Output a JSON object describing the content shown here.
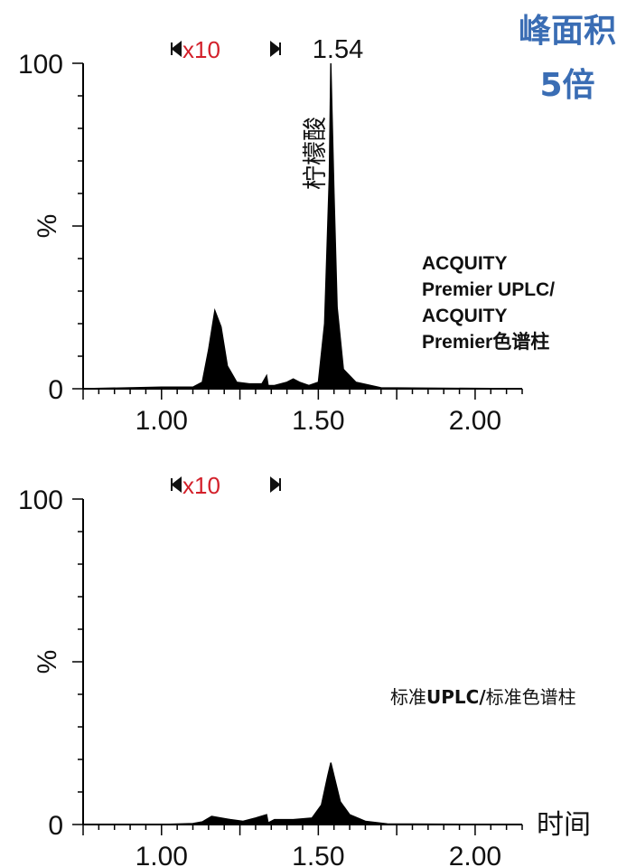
{
  "headline": {
    "line1": "峰面积",
    "line2": "5倍"
  },
  "x_axis_title": "时间",
  "chart_data": [
    {
      "type": "line",
      "panel": "top",
      "column_label": [
        "ACQUITY",
        "Premier UPLC/",
        "ACQUITY",
        "Premier色谱柱"
      ],
      "zoom_label": "x10",
      "peak_label": "1.54",
      "compound_label": "柠檬酸",
      "xlim": [
        0.75,
        2.15
      ],
      "ylim": [
        0,
        100
      ],
      "xticks": [
        "1.00",
        "1.50",
        "2.00"
      ],
      "xtick_values": [
        1.0,
        1.5,
        2.0
      ],
      "yticks": [
        "0",
        "%",
        "100"
      ],
      "ytick_values": [
        0,
        50,
        100
      ],
      "x": [
        0.75,
        1.0,
        1.05,
        1.1,
        1.13,
        1.15,
        1.17,
        1.19,
        1.21,
        1.24,
        1.28,
        1.32,
        1.335,
        1.34,
        1.36,
        1.4,
        1.42,
        1.44,
        1.47,
        1.5,
        1.52,
        1.535,
        1.54,
        1.55,
        1.56,
        1.58,
        1.62,
        1.7,
        2.15
      ],
      "y": [
        0,
        0.5,
        0.5,
        0.5,
        2,
        12,
        24,
        19,
        7,
        2,
        1.5,
        1.5,
        4,
        1,
        1,
        2,
        3,
        2,
        1,
        2,
        20,
        65,
        100,
        60,
        25,
        6,
        2,
        0.3,
        0
      ]
    },
    {
      "type": "line",
      "panel": "bottom",
      "column_label": [
        "标准",
        "UPLC/",
        "标准色谱柱"
      ],
      "zoom_label": "x10",
      "peak_label": "",
      "compound_label": "",
      "xlim": [
        0.75,
        2.15
      ],
      "ylim": [
        0,
        100
      ],
      "xticks": [
        "1.00",
        "1.50",
        "2.00"
      ],
      "xtick_values": [
        1.0,
        1.5,
        2.0
      ],
      "yticks": [
        "0",
        "%",
        "100"
      ],
      "ytick_values": [
        0,
        50,
        100
      ],
      "x": [
        0.75,
        1.0,
        1.1,
        1.13,
        1.16,
        1.19,
        1.22,
        1.26,
        1.3,
        1.335,
        1.34,
        1.36,
        1.42,
        1.48,
        1.51,
        1.53,
        1.54,
        1.55,
        1.57,
        1.6,
        1.65,
        1.72,
        2.15
      ],
      "y": [
        0,
        0,
        0.3,
        0.8,
        2.5,
        2.0,
        1.5,
        1.0,
        2.0,
        3.0,
        0.5,
        1.5,
        1.5,
        2.0,
        6,
        15,
        19,
        15,
        7,
        3,
        1,
        0.2,
        0
      ]
    }
  ]
}
